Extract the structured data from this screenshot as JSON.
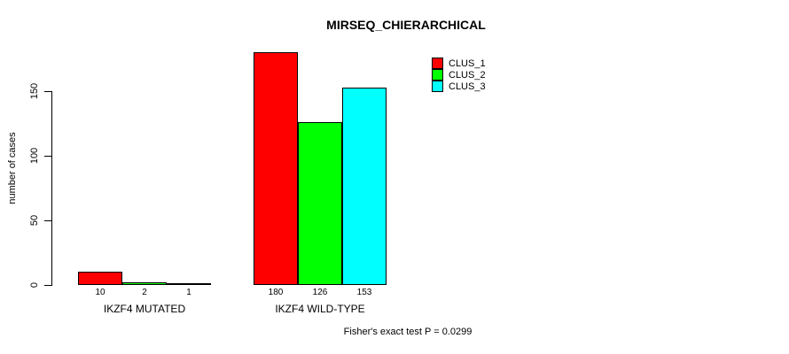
{
  "page": {
    "background": "#ffffff",
    "text_color": "#000000"
  },
  "chart_data": {
    "type": "bar",
    "title": "MIRSEQ_CHIERARCHICAL",
    "xlabel": "",
    "ylabel": "number of cases",
    "categories": [
      "IKZF4 MUTATED",
      "IKZF4 WILD-TYPE"
    ],
    "series": [
      {
        "name": "CLUS_1",
        "color": "#ff0000",
        "values": [
          10,
          180
        ]
      },
      {
        "name": "CLUS_2",
        "color": "#00ff00",
        "values": [
          2,
          126
        ]
      },
      {
        "name": "CLUS_3",
        "color": "#00ffff",
        "values": [
          1,
          153
        ]
      }
    ],
    "yticks": [
      0,
      50,
      100,
      150
    ],
    "ylim": [
      0,
      180
    ],
    "grid": false,
    "legend": {
      "position": "top-right",
      "entries": [
        "CLUS_1",
        "CLUS_2",
        "CLUS_3"
      ]
    },
    "annotation": "Fisher's exact test P = 0.0299"
  }
}
